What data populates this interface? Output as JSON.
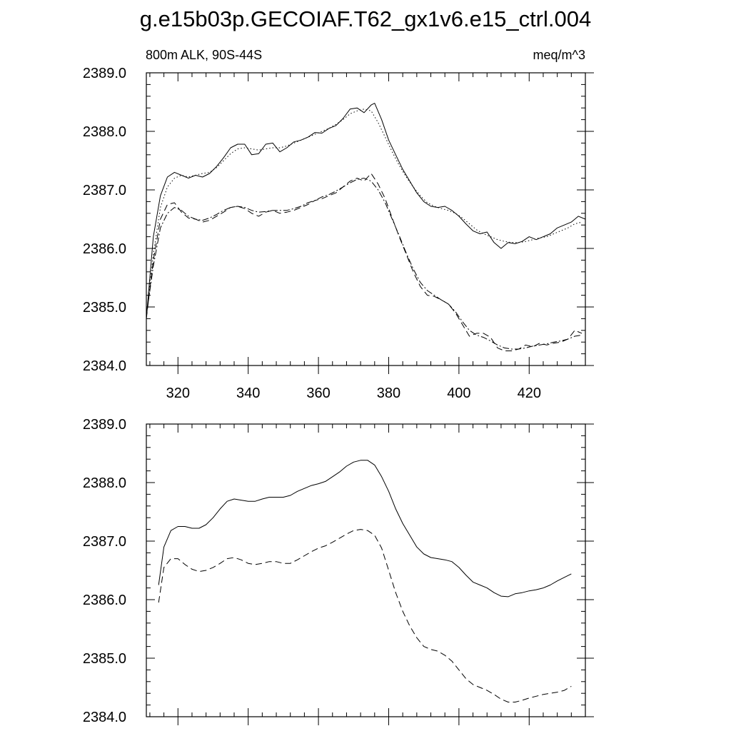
{
  "title": "g.e15b03p.GECOIAF.T62_gx1v6.e15_ctrl.004",
  "chart_data": [
    {
      "type": "line",
      "panel": "top",
      "left_label": "800m ALK, 90S-44S",
      "right_label": "meq/m^3",
      "xlim": [
        311,
        436
      ],
      "ylim": [
        2384.0,
        2389.0
      ],
      "x_ticks": [
        320,
        340,
        360,
        380,
        400,
        420
      ],
      "x_tick_labels": [
        "320",
        "340",
        "360",
        "380",
        "400",
        "420"
      ],
      "y_ticks": [
        2384.0,
        2385.0,
        2386.0,
        2387.0,
        2388.0,
        2389.0
      ],
      "y_tick_labels": [
        "2384.0",
        "2385.0",
        "2386.0",
        "2387.0",
        "2388.0",
        "2389.0"
      ],
      "grid": false,
      "series": [
        {
          "style": "solid",
          "x": [
            311,
            313,
            315,
            317,
            319,
            321,
            323,
            325,
            327,
            329,
            331,
            333,
            335,
            337,
            339,
            341,
            343,
            345,
            347,
            349,
            351,
            353,
            355,
            357,
            359,
            361,
            363,
            365,
            367,
            369,
            371,
            373,
            375,
            376,
            378,
            380,
            382,
            384,
            386,
            388,
            390,
            392,
            394,
            396,
            398,
            400,
            402,
            404,
            406,
            408,
            410,
            412,
            414,
            416,
            418,
            420,
            422,
            424,
            426,
            428,
            430,
            432,
            434,
            436
          ],
          "y": [
            2384.8,
            2386.2,
            2386.9,
            2387.22,
            2387.3,
            2387.25,
            2387.2,
            2387.25,
            2387.22,
            2387.28,
            2387.4,
            2387.55,
            2387.72,
            2387.78,
            2387.78,
            2387.6,
            2387.62,
            2387.78,
            2387.8,
            2387.65,
            2387.72,
            2387.82,
            2387.85,
            2387.9,
            2387.98,
            2387.97,
            2388.05,
            2388.1,
            2388.22,
            2388.38,
            2388.4,
            2388.32,
            2388.45,
            2388.48,
            2388.2,
            2387.85,
            2387.6,
            2387.35,
            2387.15,
            2386.95,
            2386.8,
            2386.72,
            2386.7,
            2386.72,
            2386.65,
            2386.55,
            2386.42,
            2386.3,
            2386.25,
            2386.28,
            2386.1,
            2386.0,
            2386.1,
            2386.08,
            2386.12,
            2386.2,
            2386.15,
            2386.2,
            2386.25,
            2386.35,
            2386.4,
            2386.45,
            2386.55,
            2386.5
          ]
        },
        {
          "style": "dotted",
          "x": [
            311,
            313,
            315,
            317,
            319,
            321,
            323,
            325,
            327,
            329,
            331,
            333,
            335,
            337,
            339,
            341,
            343,
            345,
            347,
            349,
            351,
            353,
            355,
            357,
            359,
            361,
            363,
            365,
            367,
            369,
            371,
            373,
            375,
            377,
            379,
            381,
            383,
            385,
            387,
            389,
            391,
            393,
            395,
            397,
            399,
            401,
            403,
            405,
            407,
            409,
            411,
            413,
            415,
            417,
            419,
            421,
            423,
            425,
            427,
            429,
            431,
            433,
            435
          ],
          "y": [
            2384.85,
            2385.9,
            2386.7,
            2387.05,
            2387.2,
            2387.25,
            2387.22,
            2387.25,
            2387.28,
            2387.3,
            2387.38,
            2387.5,
            2387.62,
            2387.7,
            2387.72,
            2387.7,
            2387.68,
            2387.7,
            2387.72,
            2387.72,
            2387.75,
            2387.8,
            2387.85,
            2387.9,
            2387.95,
            2388.0,
            2388.05,
            2388.12,
            2388.2,
            2388.3,
            2388.35,
            2388.38,
            2388.35,
            2388.15,
            2387.9,
            2387.65,
            2387.42,
            2387.22,
            2387.05,
            2386.9,
            2386.78,
            2386.72,
            2386.68,
            2386.65,
            2386.6,
            2386.52,
            2386.42,
            2386.32,
            2386.25,
            2386.2,
            2386.15,
            2386.12,
            2386.1,
            2386.1,
            2386.12,
            2386.15,
            2386.18,
            2386.2,
            2386.25,
            2386.3,
            2386.35,
            2386.42,
            2386.45
          ]
        },
        {
          "style": "dashed",
          "x": [
            311,
            313,
            315,
            317,
            319,
            321,
            323,
            325,
            327,
            329,
            331,
            333,
            335,
            337,
            339,
            341,
            343,
            345,
            347,
            349,
            351,
            353,
            355,
            357,
            359,
            361,
            363,
            365,
            367,
            369,
            371,
            373,
            375,
            377,
            379,
            381,
            383,
            385,
            387,
            389,
            391,
            393,
            395,
            397,
            399,
            401,
            403,
            405,
            407,
            409,
            411,
            413,
            415,
            417,
            419,
            421,
            423,
            425,
            427,
            429,
            431,
            433,
            435
          ],
          "y": [
            2384.8,
            2385.8,
            2386.5,
            2386.75,
            2386.78,
            2386.62,
            2386.52,
            2386.5,
            2386.45,
            2386.48,
            2386.55,
            2386.62,
            2386.7,
            2386.72,
            2386.68,
            2386.6,
            2386.55,
            2386.62,
            2386.65,
            2386.6,
            2386.62,
            2386.65,
            2386.7,
            2386.75,
            2386.82,
            2386.85,
            2386.9,
            2386.95,
            2387.05,
            2387.15,
            2387.2,
            2387.15,
            2387.28,
            2387.1,
            2386.85,
            2386.52,
            2386.2,
            2385.9,
            2385.6,
            2385.35,
            2385.2,
            2385.18,
            2385.12,
            2385.05,
            2384.9,
            2384.7,
            2384.5,
            2384.55,
            2384.55,
            2384.48,
            2384.3,
            2384.25,
            2384.25,
            2384.28,
            2384.35,
            2384.32,
            2384.38,
            2384.35,
            2384.38,
            2384.4,
            2384.45,
            2384.6,
            2384.55
          ]
        },
        {
          "style": "dashdot",
          "x": [
            311,
            313,
            315,
            317,
            319,
            321,
            323,
            325,
            327,
            329,
            331,
            333,
            335,
            337,
            339,
            341,
            343,
            345,
            347,
            349,
            351,
            353,
            355,
            357,
            359,
            361,
            363,
            365,
            367,
            369,
            371,
            373,
            375,
            377,
            379,
            381,
            383,
            385,
            387,
            389,
            391,
            393,
            395,
            397,
            399,
            401,
            403,
            405,
            407,
            409,
            411,
            413,
            415,
            417,
            419,
            421,
            423,
            425,
            427,
            429,
            431,
            433,
            435
          ],
          "y": [
            2384.85,
            2385.7,
            2386.35,
            2386.6,
            2386.7,
            2386.65,
            2386.55,
            2386.5,
            2386.48,
            2386.52,
            2386.58,
            2386.65,
            2386.7,
            2386.72,
            2386.7,
            2386.65,
            2386.62,
            2386.63,
            2386.65,
            2386.65,
            2386.65,
            2386.68,
            2386.72,
            2386.78,
            2386.82,
            2386.88,
            2386.92,
            2386.98,
            2387.05,
            2387.12,
            2387.18,
            2387.2,
            2387.15,
            2387.0,
            2386.78,
            2386.5,
            2386.22,
            2385.92,
            2385.65,
            2385.42,
            2385.28,
            2385.2,
            2385.12,
            2385.05,
            2384.92,
            2384.75,
            2384.6,
            2384.52,
            2384.48,
            2384.42,
            2384.35,
            2384.3,
            2384.28,
            2384.28,
            2384.3,
            2384.33,
            2384.35,
            2384.37,
            2384.4,
            2384.42,
            2384.45,
            2384.5,
            2384.52
          ]
        }
      ]
    },
    {
      "type": "line",
      "panel": "bottom",
      "xlim": [
        311,
        436
      ],
      "ylim": [
        2384.0,
        2389.0
      ],
      "x_ticks": [
        320,
        340,
        360,
        380,
        400,
        420
      ],
      "y_ticks": [
        2384.0,
        2385.0,
        2386.0,
        2387.0,
        2388.0,
        2389.0
      ],
      "y_tick_labels": [
        "2384.0",
        "2385.0",
        "2386.0",
        "2387.0",
        "2388.0",
        "2389.0"
      ],
      "grid": false,
      "series": [
        {
          "style": "solid",
          "x": [
            314.5,
            316,
            318,
            320,
            322,
            324,
            326,
            328,
            330,
            332,
            334,
            336,
            338,
            340,
            342,
            344,
            346,
            348,
            350,
            352,
            354,
            356,
            358,
            360,
            362,
            364,
            366,
            368,
            370,
            372,
            374,
            376,
            378,
            380,
            382,
            384,
            386,
            388,
            390,
            392,
            394,
            396,
            398,
            400,
            402,
            404,
            406,
            408,
            410,
            412,
            414,
            416,
            418,
            420,
            422,
            424,
            426,
            428,
            430,
            432
          ],
          "y": [
            2386.25,
            2386.9,
            2387.18,
            2387.25,
            2387.25,
            2387.22,
            2387.22,
            2387.28,
            2387.4,
            2387.55,
            2387.68,
            2387.72,
            2387.7,
            2387.68,
            2387.68,
            2387.72,
            2387.75,
            2387.75,
            2387.75,
            2387.78,
            2387.85,
            2387.9,
            2387.95,
            2387.98,
            2388.02,
            2388.1,
            2388.18,
            2388.28,
            2388.35,
            2388.38,
            2388.38,
            2388.3,
            2388.1,
            2387.85,
            2387.55,
            2387.3,
            2387.1,
            2386.9,
            2386.78,
            2386.72,
            2386.7,
            2386.68,
            2386.65,
            2386.55,
            2386.42,
            2386.3,
            2386.25,
            2386.2,
            2386.12,
            2386.06,
            2386.05,
            2386.1,
            2386.12,
            2386.15,
            2386.17,
            2386.2,
            2386.25,
            2386.32,
            2386.38,
            2386.44
          ]
        },
        {
          "style": "dashed",
          "x": [
            314.5,
            316,
            318,
            320,
            322,
            324,
            326,
            328,
            330,
            332,
            334,
            336,
            338,
            340,
            342,
            344,
            346,
            348,
            350,
            352,
            354,
            356,
            358,
            360,
            362,
            364,
            366,
            368,
            370,
            372,
            374,
            376,
            378,
            380,
            382,
            384,
            386,
            388,
            390,
            392,
            394,
            396,
            398,
            400,
            402,
            404,
            406,
            408,
            410,
            412,
            414,
            416,
            418,
            420,
            422,
            424,
            426,
            428,
            430,
            432
          ],
          "y": [
            2385.95,
            2386.55,
            2386.7,
            2386.7,
            2386.6,
            2386.52,
            2386.48,
            2386.5,
            2386.55,
            2386.62,
            2386.7,
            2386.72,
            2386.68,
            2386.62,
            2386.6,
            2386.62,
            2386.65,
            2386.65,
            2386.62,
            2386.62,
            2386.68,
            2386.75,
            2386.82,
            2386.88,
            2386.92,
            2386.98,
            2387.05,
            2387.12,
            2387.18,
            2387.2,
            2387.18,
            2387.1,
            2386.88,
            2386.5,
            2386.12,
            2385.8,
            2385.55,
            2385.35,
            2385.2,
            2385.15,
            2385.12,
            2385.05,
            2384.95,
            2384.8,
            2384.65,
            2384.55,
            2384.5,
            2384.45,
            2384.38,
            2384.3,
            2384.25,
            2384.25,
            2384.28,
            2384.32,
            2384.35,
            2384.38,
            2384.4,
            2384.42,
            2384.45,
            2384.52
          ]
        }
      ]
    }
  ]
}
